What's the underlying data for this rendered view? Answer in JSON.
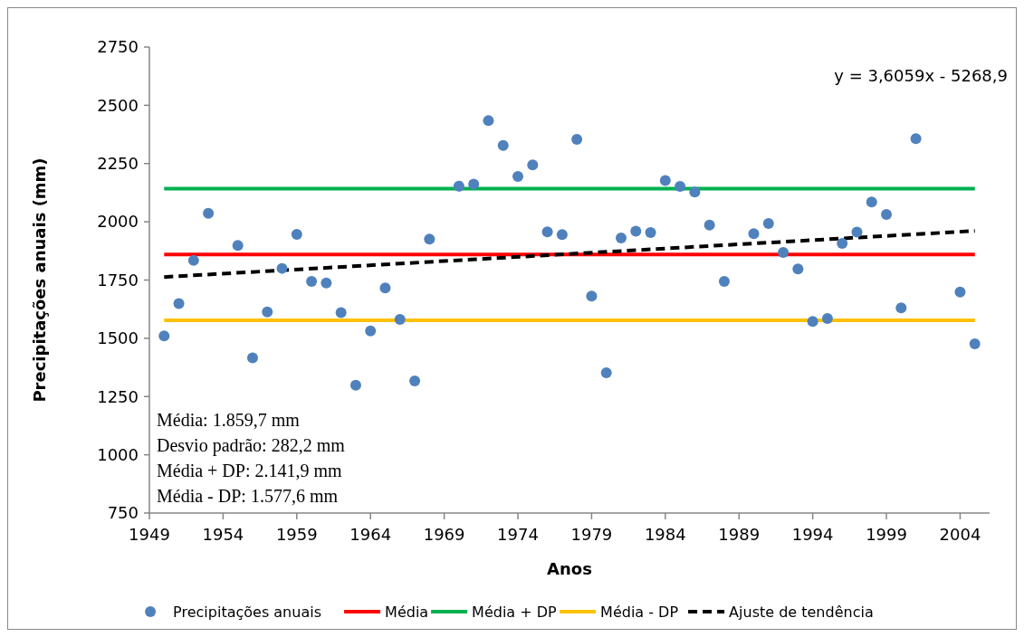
{
  "chart_data": {
    "type": "scatter",
    "xlabel": "Anos",
    "ylabel": "Precipitações anuais (mm)",
    "xlim": [
      1949,
      2006
    ],
    "xticks": [
      1949,
      1954,
      1959,
      1964,
      1969,
      1974,
      1979,
      1984,
      1989,
      1994,
      1999,
      2004
    ],
    "ylim": [
      750,
      2750
    ],
    "yticks": [
      750,
      1000,
      1250,
      1500,
      1750,
      2000,
      2250,
      2500,
      2750
    ],
    "grid": false,
    "legend": "bottom",
    "annotations": [
      "Média: 1.859,7 mm",
      "Desvio padrão: 282,2 mm",
      "Média + DP: 2.141,9 mm",
      "Média - DP: 1.577,6 mm",
      "y = 3,6059x - 5268,9"
    ],
    "series": [
      {
        "name": "Precipitações anuais",
        "marker": "circle",
        "color": "#4f81bd",
        "x": [
          1950,
          1951,
          1952,
          1953,
          1955,
          1956,
          1957,
          1958,
          1959,
          1960,
          1961,
          1962,
          1963,
          1964,
          1965,
          1966,
          1967,
          1968,
          1970,
          1971,
          1972,
          1973,
          1974,
          1975,
          1976,
          1977,
          1978,
          1979,
          1980,
          1981,
          1982,
          1983,
          1984,
          1985,
          1986,
          1987,
          1988,
          1990,
          1991,
          1992,
          1993,
          1994,
          1995,
          1996,
          1997,
          1998,
          1999,
          2000,
          2001,
          2004,
          2005
        ],
        "values": [
          1510,
          1649,
          1834,
          2036,
          1899,
          1416,
          1613,
          1800,
          1946,
          1744,
          1737,
          1610,
          1299,
          1532,
          1716,
          1581,
          1317,
          1926,
          2153,
          2162,
          2434,
          2328,
          2195,
          2244,
          1957,
          1945,
          2354,
          1681,
          1352,
          1931,
          1960,
          1954,
          2177,
          2152,
          2128,
          1986,
          1744,
          1949,
          1993,
          1868,
          1798,
          1572,
          1585,
          1907,
          1956,
          2085,
          2032,
          1631,
          2357,
          1699,
          1476
        ]
      },
      {
        "name": "Média",
        "type": "line",
        "line_style": "solid",
        "color": "#ff0000",
        "x": [
          1950,
          2005
        ],
        "values": [
          1859.7,
          1859.7
        ]
      },
      {
        "name": "Média + DP",
        "type": "line",
        "line_style": "solid",
        "color": "#00b050",
        "x": [
          1950,
          2005
        ],
        "values": [
          2141.9,
          2141.9
        ]
      },
      {
        "name": "Média - DP",
        "type": "line",
        "line_style": "solid",
        "color": "#ffc000",
        "x": [
          1950,
          2005
        ],
        "values": [
          1577.6,
          1577.6
        ]
      },
      {
        "name": "Ajuste de tendência",
        "type": "line",
        "line_style": "dashed",
        "color": "#000000",
        "x": [
          1950,
          2005
        ],
        "values": [
          1763,
          1961
        ]
      }
    ]
  }
}
